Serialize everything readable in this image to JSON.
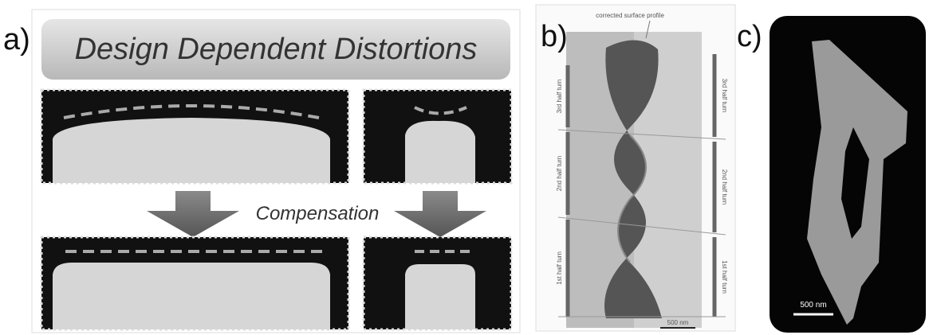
{
  "panels": [
    {
      "label": "a)",
      "title": "Design Dependent Distortions",
      "arrow_label": "Compensation"
    },
    {
      "label": "b)",
      "annotation": "corrected surface profile",
      "left_segments": [
        "3rd half turn",
        "2nd half turn",
        "1st half turn"
      ],
      "right_segments": [
        "3rd half turn",
        "2nd half turn",
        "1st half turn"
      ],
      "scale_bar": "500 nm"
    },
    {
      "label": "c)",
      "scale_bar": "500 nm"
    }
  ]
}
